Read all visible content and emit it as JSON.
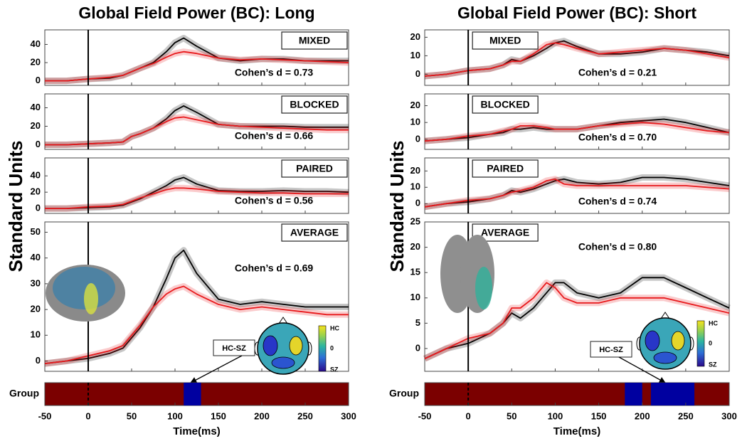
{
  "chart_data": [
    {
      "type": "line",
      "title": "Global Field Power (BC): Long",
      "ylabel": "Standard Units",
      "xlabel": "Time(ms)",
      "x": [
        -50,
        -25,
        0,
        25,
        40,
        50,
        60,
        75,
        90,
        100,
        110,
        125,
        150,
        175,
        200,
        225,
        250,
        275,
        300
      ],
      "xlim": [
        -50,
        300
      ],
      "xticks": [
        -50,
        0,
        50,
        100,
        150,
        200,
        250,
        300
      ],
      "panels": [
        {
          "label": "MIXED",
          "annotation": "Cohen’s d = 0.73",
          "ylim": [
            -5,
            56
          ],
          "yticks": [
            0,
            20,
            40
          ],
          "series": [
            {
              "color": "#000000",
              "values": [
                0,
                0,
                2,
                3,
                6,
                10,
                14,
                20,
                32,
                42,
                47,
                38,
                25,
                22,
                24,
                24,
                22,
                22,
                22
              ]
            },
            {
              "color": "#e8191c",
              "values": [
                0,
                0,
                2,
                4,
                6,
                10,
                14,
                19,
                26,
                30,
                32,
                30,
                25,
                23,
                24,
                23,
                22,
                21,
                20
              ]
            }
          ]
        },
        {
          "label": "BLOCKED",
          "annotation": "Cohen’s d = 0.66",
          "ylim": [
            -5,
            55
          ],
          "yticks": [
            0,
            20,
            40
          ],
          "series": [
            {
              "color": "#000000",
              "values": [
                0,
                0,
                1,
                2,
                3,
                9,
                12,
                18,
                28,
                37,
                42,
                35,
                22,
                20,
                20,
                20,
                19,
                19,
                19
              ]
            },
            {
              "color": "#e8191c",
              "values": [
                0,
                0,
                1,
                2,
                3,
                9,
                12,
                18,
                25,
                29,
                30,
                27,
                22,
                20,
                19,
                18,
                17,
                16,
                16
              ]
            }
          ]
        },
        {
          "label": "PAIRED",
          "annotation": "Cohen’s d = 0.56",
          "ylim": [
            -6,
            62
          ],
          "yticks": [
            0,
            20,
            40
          ],
          "series": [
            {
              "color": "#000000",
              "values": [
                0,
                0,
                1,
                2,
                4,
                8,
                12,
                20,
                28,
                35,
                38,
                30,
                22,
                21,
                21,
                22,
                21,
                21,
                20
              ]
            },
            {
              "color": "#e8191c",
              "values": [
                0,
                0,
                2,
                3,
                5,
                9,
                13,
                18,
                23,
                25,
                25,
                24,
                21,
                20,
                19,
                19,
                18,
                18,
                18
              ]
            }
          ]
        },
        {
          "label": "AVERAGE",
          "annotation": "Cohen’s d = 0.69",
          "ylim": [
            -4,
            54
          ],
          "yticks": [
            0,
            10,
            20,
            30,
            40,
            50
          ],
          "series": [
            {
              "color": "#000000",
              "values": [
                -1,
                0,
                1,
                3,
                5,
                9,
                13,
                21,
                32,
                40,
                43,
                34,
                24,
                22,
                23,
                22,
                21,
                21,
                21
              ]
            },
            {
              "color": "#e8191c",
              "values": [
                -1,
                0,
                2,
                4,
                6,
                10,
                14,
                21,
                26,
                28,
                29,
                26,
                22,
                20,
                21,
                20,
                19,
                18,
                18
              ]
            }
          ]
        }
      ],
      "contrast": "HC-SZ",
      "colorbar_labels": [
        "HC",
        "0",
        "SZ"
      ],
      "group": {
        "label": "Group",
        "color": "#7b0000",
        "interval_color": "#0000a0",
        "intervals": [
          [
            110,
            130
          ]
        ]
      }
    },
    {
      "type": "line",
      "title": "Global Field Power (BC): Short",
      "ylabel": "Standard Units",
      "xlabel": "Time(ms)",
      "x": [
        -50,
        -25,
        0,
        25,
        40,
        50,
        60,
        75,
        90,
        100,
        110,
        125,
        150,
        175,
        200,
        225,
        250,
        275,
        300
      ],
      "xlim": [
        -50,
        300
      ],
      "xticks": [
        -50,
        0,
        50,
        100,
        150,
        200,
        250,
        300
      ],
      "panels": [
        {
          "label": "MIXED",
          "annotation": "Cohen’s d = 0.21",
          "ylim": [
            -6,
            24
          ],
          "yticks": [
            0,
            10,
            20
          ],
          "series": [
            {
              "color": "#000000",
              "values": [
                -1,
                0,
                2,
                3,
                5,
                8,
                7,
                10,
                14,
                17,
                18,
                15,
                11,
                11,
                12,
                14,
                13,
                12,
                10
              ]
            },
            {
              "color": "#e8191c",
              "values": [
                -1,
                0,
                2,
                3,
                5,
                7,
                7,
                11,
                16,
                17,
                16,
                14,
                11,
                12,
                13,
                14,
                13,
                11,
                9
              ]
            }
          ]
        },
        {
          "label": "BLOCKED",
          "annotation": "Cohen’s d = 0.70",
          "ylim": [
            -6,
            27
          ],
          "yticks": [
            0,
            10,
            20
          ],
          "series": [
            {
              "color": "#000000",
              "values": [
                -1,
                0,
                1,
                3,
                4,
                6,
                6,
                7,
                6,
                6,
                6,
                6,
                8,
                10,
                11,
                12,
                10,
                7,
                4
              ]
            },
            {
              "color": "#e8191c",
              "values": [
                -1,
                0,
                2,
                3,
                5,
                6,
                8,
                8,
                7,
                6,
                6,
                6,
                8,
                9,
                10,
                9,
                7,
                5,
                4
              ]
            }
          ]
        },
        {
          "label": "PAIRED",
          "annotation": "Cohen’s d = 0.74",
          "ylim": [
            -6,
            28
          ],
          "yticks": [
            0,
            10,
            20
          ],
          "series": [
            {
              "color": "#000000",
              "values": [
                -2,
                0,
                1,
                3,
                5,
                8,
                7,
                9,
                12,
                14,
                15,
                13,
                12,
                13,
                16,
                16,
                15,
                13,
                11
              ]
            },
            {
              "color": "#e8191c",
              "values": [
                -2,
                0,
                2,
                3,
                5,
                7,
                8,
                10,
                14,
                15,
                12,
                11,
                11,
                11,
                11,
                11,
                11,
                10,
                9
              ]
            }
          ]
        },
        {
          "label": "AVERAGE",
          "annotation": "Cohen’s d = 0.80",
          "ylim": [
            -4.5,
            25
          ],
          "yticks": [
            0,
            5,
            10,
            15,
            20,
            25
          ],
          "series": [
            {
              "color": "#000000",
              "values": [
                -2,
                0,
                1,
                3,
                5,
                7,
                6,
                8,
                11,
                13,
                13,
                11,
                10,
                11,
                14,
                14,
                12,
                10,
                8
              ]
            },
            {
              "color": "#e8191c",
              "values": [
                -2,
                0,
                2,
                3,
                5,
                8,
                8,
                10,
                13,
                12,
                10,
                9,
                9,
                10,
                10,
                10,
                9,
                8,
                7
              ]
            }
          ]
        }
      ],
      "contrast": "HC-SZ",
      "colorbar_labels": [
        "HC",
        "0",
        "SZ"
      ],
      "group": {
        "label": "Group",
        "color": "#7b0000",
        "interval_color": "#0000a0",
        "intervals": [
          [
            180,
            200
          ],
          [
            210,
            260
          ]
        ]
      }
    }
  ]
}
